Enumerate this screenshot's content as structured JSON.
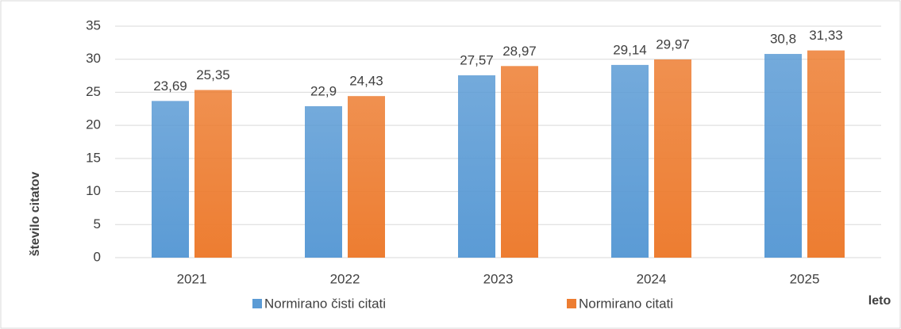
{
  "chart_data": {
    "type": "bar",
    "categories": [
      "2021",
      "2022",
      "2023",
      "2024",
      "2025"
    ],
    "series": [
      {
        "name": "Normirano čisti citati",
        "color": "#5b9bd5",
        "values": [
          23.69,
          22.9,
          27.57,
          29.14,
          30.8
        ],
        "value_labels": [
          "23,69",
          "22,9",
          "27,57",
          "29,14",
          "30,8"
        ]
      },
      {
        "name": "Normirano citati",
        "color": "#ed7d31",
        "values": [
          25.35,
          24.43,
          28.97,
          29.97,
          31.33
        ],
        "value_labels": [
          "25,35",
          "24,43",
          "28,97",
          "29,97",
          "31,33"
        ]
      }
    ],
    "ylim": [
      0,
      35
    ],
    "yticks": [
      0,
      5,
      10,
      15,
      20,
      25,
      30,
      35
    ],
    "grid": true,
    "xlabel": "leto",
    "ylabel": "število citatov",
    "legend": "bottom"
  }
}
